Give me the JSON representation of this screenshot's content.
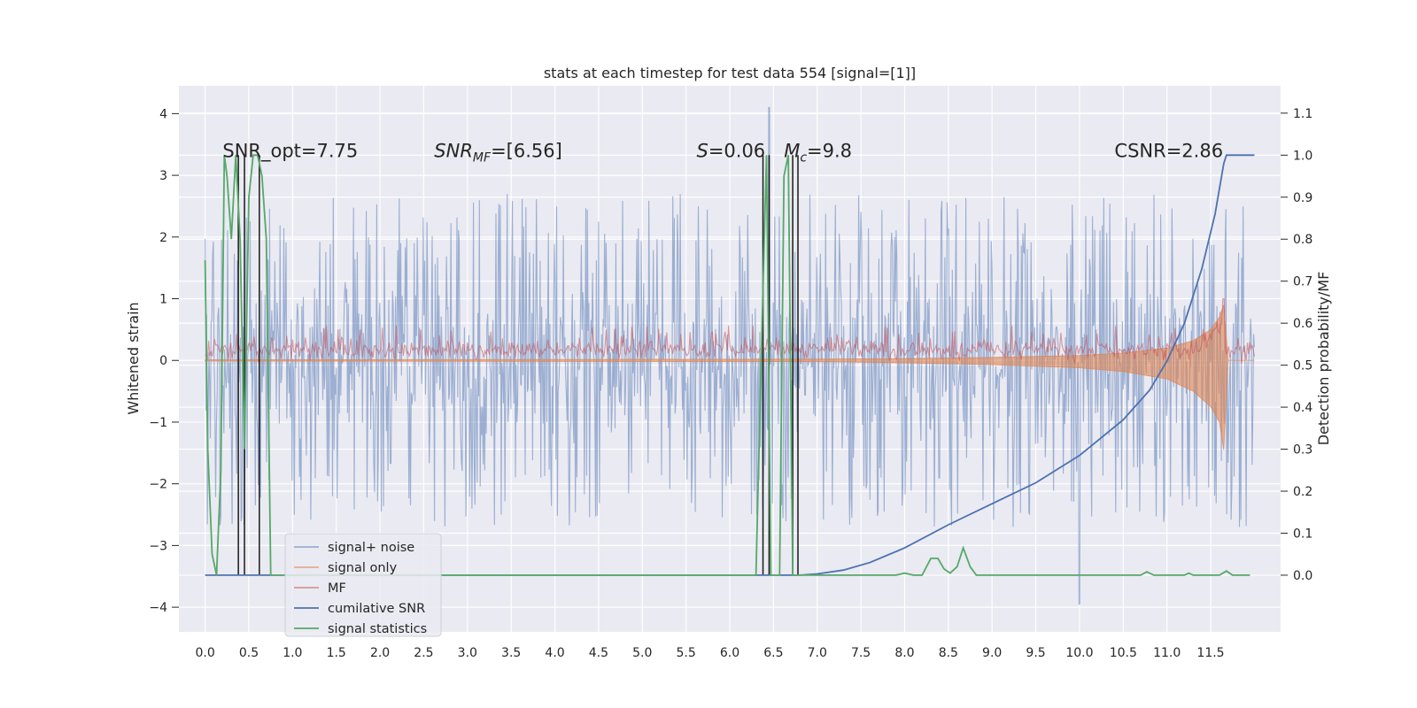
{
  "chart_data": {
    "type": "line",
    "title": "stats at each timestep for test data 554 [signal=[1]]",
    "ylabel": "Whitened strain",
    "y2label": "Detection probability/MF",
    "xlim": [
      -0.3,
      12.3
    ],
    "ylim": [
      -4.4,
      4.45
    ],
    "y2lim": [
      -0.135,
      1.165
    ],
    "grid": true,
    "legend_position": "lower-left",
    "x_ticks": [
      "0.0",
      "0.5",
      "1.0",
      "1.5",
      "2.0",
      "2.5",
      "3.0",
      "3.5",
      "4.0",
      "4.5",
      "5.0",
      "5.5",
      "6.0",
      "6.5",
      "7.0",
      "7.5",
      "8.0",
      "8.5",
      "9.0",
      "9.5",
      "10.0",
      "10.5",
      "11.0",
      "11.5"
    ],
    "y_ticks": [
      "4",
      "3",
      "2",
      "1",
      "0",
      "−1",
      "−2",
      "−3",
      "−4"
    ],
    "y2_ticks": [
      "1.1",
      "1.0",
      "0.9",
      "0.8",
      "0.7",
      "0.6",
      "0.5",
      "0.4",
      "0.3",
      "0.2",
      "0.1",
      "0.0"
    ],
    "annotations": [
      {
        "id": "snr_opt",
        "text": "SNR_opt=7.75",
        "x": 0.2,
        "y2": 1.0
      },
      {
        "id": "snr_mf",
        "text": "SNR_MF=[6.56]",
        "x": 2.62,
        "y2": 1.0
      },
      {
        "id": "s_stat",
        "text": "S=0.06",
        "x": 5.62,
        "y2": 1.0
      },
      {
        "id": "mc",
        "text": "M_c=9.8",
        "x": 6.62,
        "y2": 1.0
      },
      {
        "id": "csnr",
        "text": "CSNR=2.86",
        "x": 10.4,
        "y2": 1.0
      }
    ],
    "series": [
      {
        "name": "signal+ noise",
        "axis": "left",
        "color": "#4c72b0",
        "opacity": 0.5,
        "description": "whitened noisy strain, spans roughly -2.5..2.5 with spikes up to 4.1 near t=6.45",
        "x_range": [
          0.0,
          12.0
        ],
        "envelope": [
          -2.3,
          2.4
        ],
        "max": 4.1,
        "min": -3.95
      },
      {
        "name": "signal only",
        "axis": "left",
        "color": "#dd8452",
        "opacity": 0.6,
        "x": [
          0.0,
          7.0,
          8.0,
          9.0,
          10.0,
          10.5,
          11.0,
          11.3,
          11.5,
          11.6,
          11.65,
          11.7,
          12.0
        ],
        "upper": [
          0.01,
          0.02,
          0.03,
          0.05,
          0.08,
          0.12,
          0.2,
          0.32,
          0.5,
          0.7,
          0.9,
          0.0,
          0.0
        ],
        "lower": [
          -0.01,
          -0.02,
          -0.04,
          -0.07,
          -0.12,
          -0.18,
          -0.3,
          -0.5,
          -0.75,
          -1.0,
          -1.45,
          0.0,
          0.0
        ]
      },
      {
        "name": "MF",
        "axis": "left",
        "color": "#c44e52",
        "opacity": 0.55,
        "description": "matched-filter output, band between about 0.0 and 0.4 with peak 1.0 at t=11.65",
        "x_range": [
          0.0,
          12.0
        ],
        "band": [
          0.0,
          0.42
        ],
        "peak": {
          "x": 11.65,
          "y": 1.0
        }
      },
      {
        "name": "cumilative SNR",
        "axis": "right",
        "color": "#4c72b0",
        "x": [
          0.0,
          6.8,
          7.0,
          7.3,
          7.6,
          8.0,
          8.5,
          9.0,
          9.5,
          10.0,
          10.5,
          10.8,
          11.0,
          11.2,
          11.4,
          11.55,
          11.65,
          11.68,
          12.0
        ],
        "y": [
          0.0,
          0.0,
          0.003,
          0.012,
          0.03,
          0.065,
          0.12,
          0.17,
          0.22,
          0.285,
          0.37,
          0.44,
          0.51,
          0.6,
          0.73,
          0.86,
          0.98,
          1.0,
          1.0
        ]
      },
      {
        "name": "signal statistics",
        "axis": "right",
        "color": "#55a868",
        "x": [
          0.0,
          0.03,
          0.08,
          0.13,
          0.18,
          0.22,
          0.25,
          0.3,
          0.35,
          0.4,
          0.45,
          0.5,
          0.55,
          0.6,
          0.65,
          0.7,
          0.75,
          0.8,
          6.3,
          6.37,
          6.42,
          6.47,
          6.52,
          6.57,
          6.62,
          6.67,
          6.72,
          6.77,
          6.82,
          7.9,
          8.0,
          8.1,
          8.2,
          8.3,
          8.38,
          8.45,
          8.52,
          8.6,
          8.67,
          8.75,
          8.82,
          10.7,
          10.77,
          10.85,
          11.2,
          11.25,
          11.3,
          11.6,
          11.68,
          11.75,
          11.95
        ],
        "y": [
          0.75,
          0.3,
          0.05,
          0.0,
          0.25,
          1.0,
          0.95,
          0.8,
          1.0,
          0.8,
          0.3,
          0.9,
          1.0,
          1.0,
          0.95,
          0.8,
          0.0,
          0.0,
          0.0,
          0.6,
          1.0,
          0.0,
          0.0,
          0.0,
          0.95,
          1.0,
          0.0,
          0.0,
          0.0,
          0.0,
          0.005,
          0.0,
          0.0,
          0.04,
          0.04,
          0.015,
          0.005,
          0.02,
          0.065,
          0.02,
          0.0,
          0.0,
          0.008,
          0.0,
          0.0,
          0.005,
          0.0,
          0.0,
          0.01,
          0.0,
          0.0
        ]
      },
      {
        "name": "",
        "axis": "right",
        "color": "#1a1a1a",
        "kind": "vertical_markers",
        "x": [
          0.38,
          0.45,
          0.62,
          6.38,
          6.45,
          6.72,
          6.78
        ]
      }
    ],
    "legend": [
      "signal+ noise",
      "signal only",
      "MF",
      "cumilative SNR",
      "signal statistics"
    ]
  }
}
